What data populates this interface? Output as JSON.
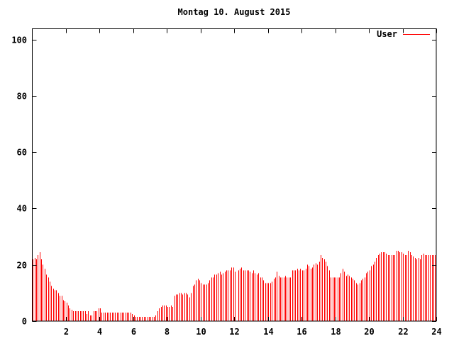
{
  "title": "Montag 10. August 2015",
  "legend": {
    "label": "User",
    "color": "#ff0000"
  },
  "colors": {
    "bars": "#ff0000",
    "axis": "#000000",
    "background": "#ffffff"
  },
  "chart_data": {
    "type": "bar",
    "title": "Montag 10. August 2015",
    "xlabel": "",
    "ylabel": "",
    "legend_position": "top-right",
    "grid": false,
    "xlim": [
      0,
      24
    ],
    "ylim": [
      0,
      104
    ],
    "xticks": [
      2,
      4,
      6,
      8,
      10,
      12,
      14,
      16,
      18,
      20,
      22,
      24
    ],
    "yticks": [
      0,
      20,
      40,
      60,
      80,
      100
    ],
    "x_unit_hours": true,
    "x_start": 0.0,
    "x_step": 0.1,
    "series": [
      {
        "name": "User",
        "color": "#ff0000",
        "values": [
          22,
          22.5,
          22,
          23.5,
          24.5,
          22,
          20,
          18.5,
          16.5,
          15.5,
          14,
          12.5,
          11.5,
          11,
          11,
          10,
          9,
          9,
          7.5,
          7,
          6.5,
          5.5,
          4.5,
          4,
          3.5,
          3.5,
          3.5,
          3.5,
          3.5,
          3.5,
          3.5,
          3.5,
          2.5,
          3.5,
          2,
          2,
          3.5,
          3.5,
          3.5,
          4.5,
          4.5,
          3,
          3,
          3,
          3,
          3,
          3,
          3,
          3,
          3,
          3,
          3,
          3,
          3,
          3,
          3,
          3,
          3,
          3,
          2.5,
          2,
          1.5,
          1.5,
          1.5,
          1.5,
          1.5,
          1.5,
          1.5,
          1.5,
          1.5,
          1.5,
          1.5,
          1.5,
          2,
          3.5,
          4.5,
          5,
          5.5,
          5.5,
          5.5,
          5,
          5,
          5.5,
          5,
          9,
          9.5,
          9.5,
          10,
          10,
          9.5,
          10,
          10,
          9.5,
          8.5,
          10,
          12.5,
          13,
          14.5,
          15,
          14.5,
          13.5,
          13,
          13,
          13,
          13.5,
          14.5,
          15.5,
          15.5,
          16.5,
          16.5,
          17,
          17.5,
          16.5,
          17,
          17.5,
          18,
          18,
          18,
          19,
          19,
          17.5,
          0,
          18,
          18.5,
          19,
          18,
          18,
          18,
          18,
          17.5,
          17,
          18,
          17,
          16.5,
          17,
          15.5,
          15.5,
          14.5,
          13.5,
          13.5,
          13.5,
          13.5,
          14,
          15,
          15.5,
          17.5,
          16,
          15.5,
          15.5,
          15.5,
          16,
          15.5,
          15.5,
          15.5,
          18,
          18,
          18,
          18.5,
          18,
          18.5,
          18,
          18,
          18.5,
          20,
          19.5,
          18.5,
          19,
          20,
          20.5,
          20,
          21,
          23.5,
          22.5,
          22,
          21,
          19.5,
          18,
          15.5,
          15.5,
          15.5,
          15.5,
          15.5,
          15.5,
          17,
          18.5,
          17.5,
          16,
          16.5,
          16,
          15.5,
          15,
          14.5,
          13.5,
          13,
          13.5,
          14.5,
          15,
          15.5,
          17,
          17.5,
          18,
          19.5,
          20,
          21,
          22.5,
          23.5,
          24,
          24.5,
          24.5,
          24.5,
          24,
          23.5,
          23.5,
          23.5,
          23.5,
          23.5,
          25,
          25,
          24.5,
          24.5,
          24,
          23.5,
          23.5,
          25,
          24.5,
          23.5,
          23,
          22.5,
          22,
          22.5,
          22,
          23.5,
          24,
          23.5,
          23.5,
          23.5,
          23.5,
          23.5,
          23.5,
          23.5
        ]
      }
    ]
  }
}
